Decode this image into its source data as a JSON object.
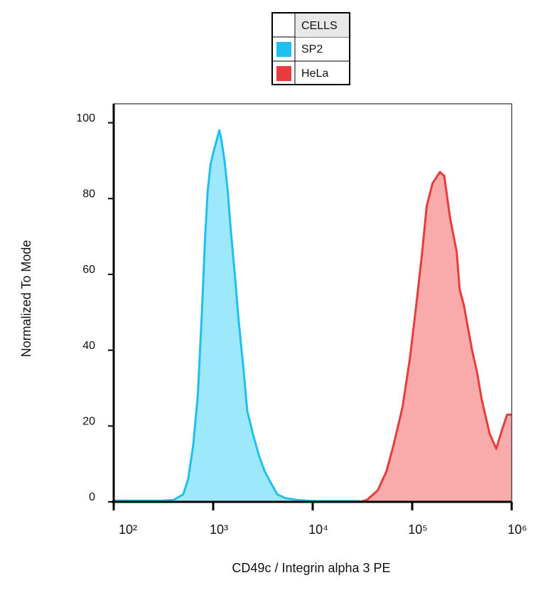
{
  "chart_data": {
    "type": "area",
    "x_label": "CD49c / Integrin alpha 3 PE",
    "y_label": "Normalized To Mode",
    "legend_title": "CELLS",
    "xscale": "log",
    "xlim": [
      100,
      1000000
    ],
    "xticks": [
      {
        "value": 100,
        "label": "10²"
      },
      {
        "value": 1000,
        "label": "10³"
      },
      {
        "value": 10000,
        "label": "10⁴"
      },
      {
        "value": 100000,
        "label": "10⁵"
      },
      {
        "value": 1000000,
        "label": "10⁶"
      }
    ],
    "ylim": [
      0,
      105
    ],
    "yticks": [
      0,
      20,
      40,
      60,
      80,
      100
    ],
    "series": [
      {
        "name": "SP2",
        "color": "#1fc0ef",
        "fill": "#9de8fb",
        "x": [
          100,
          200,
          300,
          400,
          500,
          560,
          630,
          700,
          770,
          830,
          880,
          940,
          1000,
          1100,
          1150,
          1200,
          1300,
          1400,
          1500,
          1650,
          1800,
          2000,
          2200,
          2500,
          2900,
          3300,
          3800,
          4400,
          5300,
          7000,
          10000,
          30000
        ],
        "values": [
          0.3,
          0.3,
          0.3,
          0.5,
          2,
          6,
          15,
          28,
          50,
          70,
          82,
          89,
          92,
          96,
          98,
          96,
          90,
          82,
          72,
          60,
          48,
          36,
          24,
          18,
          12,
          8,
          5,
          2,
          1,
          0.5,
          0.2,
          0.2
        ]
      },
      {
        "name": "HeLa",
        "color": "#e83c3c",
        "fill": "#f9aaaa",
        "x": [
          30000,
          35000,
          45000,
          55000,
          65000,
          80000,
          95000,
          110000,
          125000,
          140000,
          160000,
          190000,
          210000,
          240000,
          280000,
          300000,
          330000,
          400000,
          450000,
          500000,
          600000,
          700000,
          800000,
          900000,
          1000000
        ],
        "values": [
          0,
          0.5,
          3,
          8,
          15,
          25,
          38,
          52,
          65,
          78,
          84,
          87,
          86,
          75,
          66,
          56,
          52,
          40,
          34,
          27,
          18,
          14,
          19,
          23,
          23
        ]
      }
    ]
  }
}
